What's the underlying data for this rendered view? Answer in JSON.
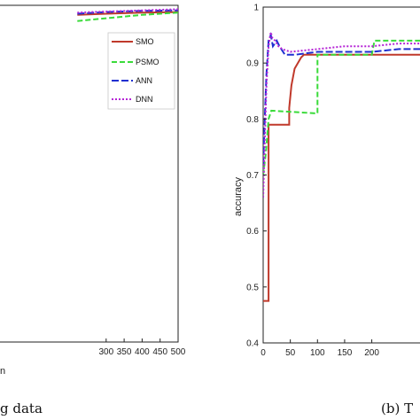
{
  "chart_data": [
    {
      "type": "line",
      "panel": "left",
      "xlim": [
        0,
        500
      ],
      "ylim": [
        0.4,
        1.0
      ],
      "x_ticks": [
        "300",
        "350",
        "400",
        "450",
        "500"
      ],
      "xlabel_fragment": "n",
      "caption_fragment": "g data",
      "legend": [
        "SMO",
        "PSMO",
        "ANN",
        "DNN"
      ],
      "colors": {
        "SMO": "#c0392b",
        "PSMO": "#3adb3a",
        "ANN": "#1f2fd0",
        "DNN": "#b524d6"
      },
      "series": [
        {
          "name": "SMO",
          "x": [
            220,
            300,
            400,
            500
          ],
          "y": [
            0.983,
            0.985,
            0.987,
            0.988
          ]
        },
        {
          "name": "PSMO",
          "x": [
            220,
            300,
            350,
            400,
            450,
            500
          ],
          "y": [
            0.972,
            0.977,
            0.98,
            0.983,
            0.985,
            0.987
          ]
        },
        {
          "name": "ANN",
          "x": [
            220,
            300,
            400,
            500
          ],
          "y": [
            0.985,
            0.988,
            0.99,
            0.991
          ]
        },
        {
          "name": "DNN",
          "x": [
            220,
            300,
            400,
            500
          ],
          "y": [
            0.987,
            0.989,
            0.991,
            0.993
          ]
        }
      ]
    },
    {
      "type": "line",
      "panel": "right",
      "xlim": [
        0,
        310
      ],
      "ylim": [
        0.4,
        1.0
      ],
      "x_ticks": [
        "0",
        "50",
        "100",
        "150",
        "200"
      ],
      "y_ticks": [
        "0.4",
        "0.5",
        "0.6",
        "0.7",
        "0.8",
        "0.9",
        "1"
      ],
      "ylabel": "accuracy",
      "caption_fragment": "(b) T",
      "series": [
        {
          "name": "SMO",
          "x": [
            0,
            10,
            10,
            48,
            48,
            52,
            58,
            70,
            75,
            310
          ],
          "y": [
            0.475,
            0.475,
            0.79,
            0.79,
            0.82,
            0.86,
            0.89,
            0.91,
            0.915,
            0.915
          ]
        },
        {
          "name": "PSMO",
          "x": [
            0,
            5,
            10,
            15,
            15,
            100,
            100,
            200,
            205,
            310
          ],
          "y": [
            0.7,
            0.74,
            0.8,
            0.815,
            0.815,
            0.81,
            0.915,
            0.915,
            0.94,
            0.94
          ]
        },
        {
          "name": "ANN",
          "x": [
            0,
            3,
            6,
            10,
            14,
            18,
            25,
            30,
            40,
            60,
            100,
            150,
            200,
            250,
            310
          ],
          "y": [
            0.72,
            0.8,
            0.88,
            0.94,
            0.95,
            0.93,
            0.94,
            0.93,
            0.915,
            0.915,
            0.92,
            0.92,
            0.92,
            0.925,
            0.925
          ]
        },
        {
          "name": "DNN",
          "x": [
            0,
            3,
            6,
            10,
            14,
            17,
            22,
            28,
            35,
            50,
            100,
            150,
            200,
            250,
            310
          ],
          "y": [
            0.66,
            0.76,
            0.86,
            0.93,
            0.955,
            0.945,
            0.94,
            0.93,
            0.925,
            0.92,
            0.925,
            0.93,
            0.93,
            0.935,
            0.935
          ]
        }
      ]
    }
  ]
}
